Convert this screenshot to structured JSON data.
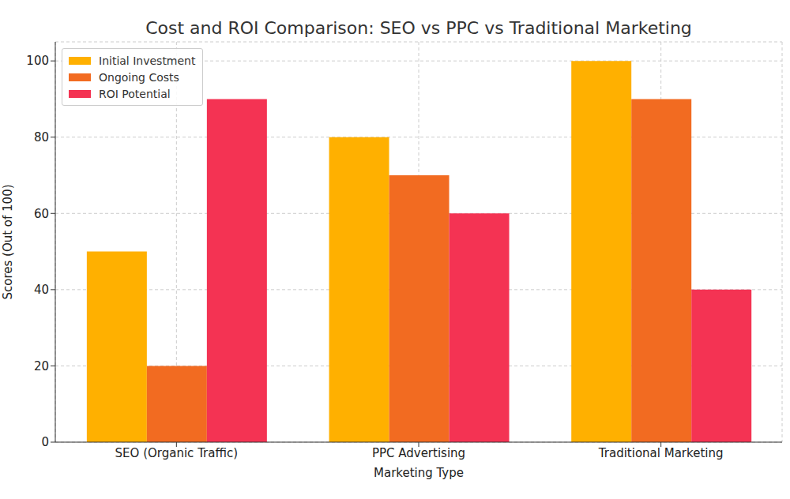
{
  "chart_data": {
    "type": "bar",
    "title": "Cost and ROI Comparison: SEO vs PPC vs Traditional Marketing",
    "x_label": "Marketing Type",
    "y_label": "Scores (Out of 100)",
    "categories": [
      "SEO (Organic Traffic)",
      "PPC Advertising",
      "Traditional Marketing"
    ],
    "series": [
      {
        "name": "Initial Investment",
        "color": "#ffb000",
        "values": [
          50,
          80,
          100
        ]
      },
      {
        "name": "Ongoing Costs",
        "color": "#f26b21",
        "values": [
          20,
          70,
          90
        ]
      },
      {
        "name": "ROI Potential",
        "color": "#f43353",
        "values": [
          90,
          60,
          40
        ]
      }
    ],
    "ylim": [
      0,
      105
    ],
    "yticks": [
      0,
      20,
      40,
      60,
      80,
      100
    ],
    "grid": true,
    "legend": "upper left"
  }
}
